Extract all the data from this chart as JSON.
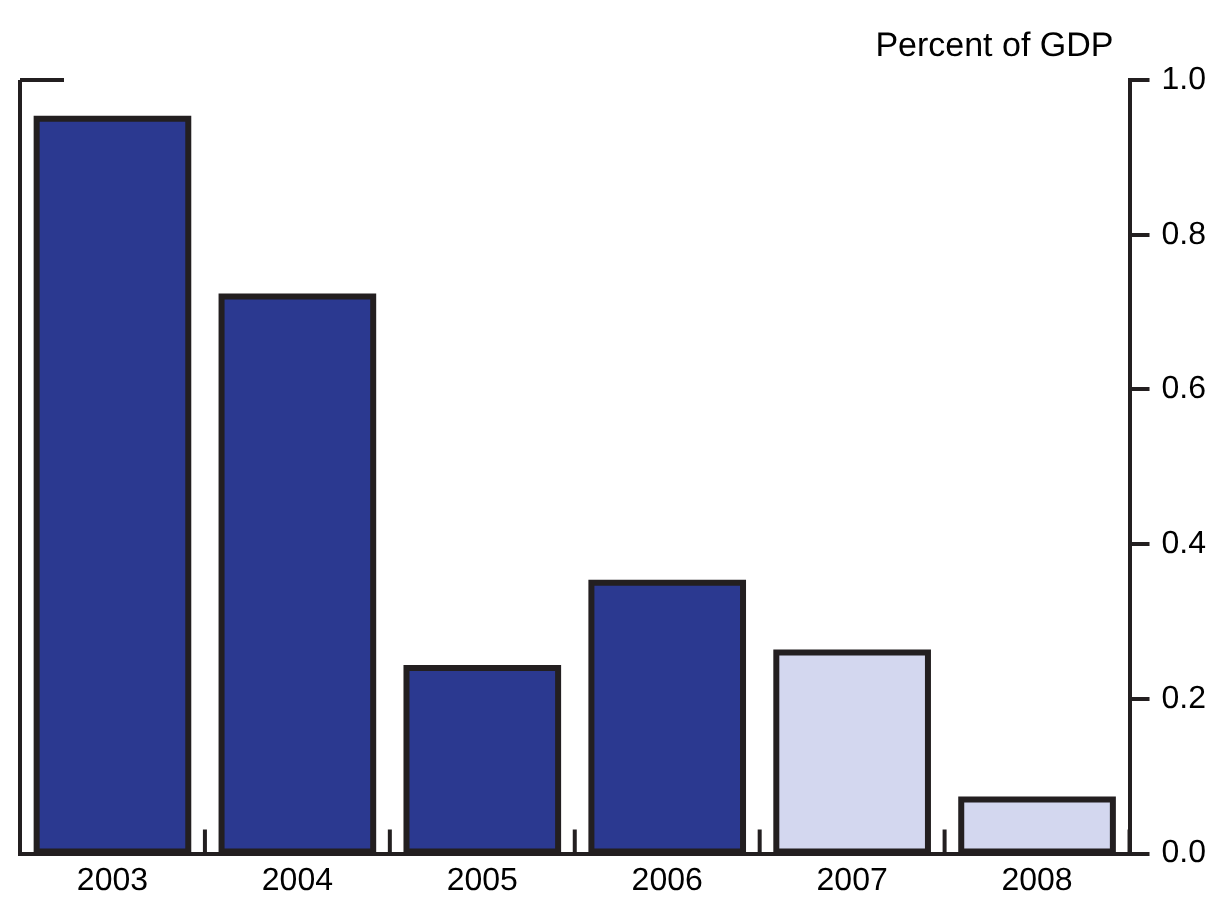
{
  "chart_data": {
    "type": "bar",
    "ylabel": "Percent of GDP",
    "categories": [
      "2003",
      "2004",
      "2005",
      "2006",
      "2007",
      "2008"
    ],
    "values": [
      0.95,
      0.72,
      0.24,
      0.35,
      0.26,
      0.07
    ],
    "colors": [
      "#2b3990",
      "#2b3990",
      "#2b3990",
      "#2b3990",
      "#d3d7ef",
      "#d3d7ef"
    ],
    "ylim": [
      0,
      1
    ],
    "yticks": [
      {
        "value": 0,
        "label": "0.0"
      },
      0.2,
      0.4,
      0.6,
      0.8,
      {
        "value": 1,
        "label": "1.0"
      }
    ],
    "grid": false,
    "legend": false
  }
}
